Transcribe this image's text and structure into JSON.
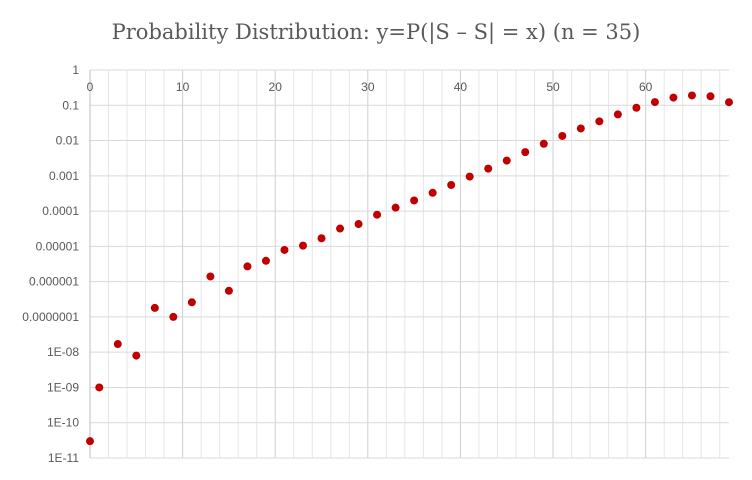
{
  "chart_data": {
    "type": "scatter",
    "title": "Probability Distribution: y=P(|S – S| = x) (n = 35)",
    "xlabel": "",
    "ylabel": "",
    "xlim": [
      0,
      69
    ],
    "ylim": [
      1e-11,
      1
    ],
    "y_scale": "log",
    "grid": true,
    "x_ticks": [
      0,
      10,
      20,
      30,
      40,
      50,
      60
    ],
    "x_tick_labels": [
      "0",
      "10",
      "20",
      "30",
      "40",
      "50",
      "60"
    ],
    "x_minor_step": 2,
    "y_ticks": [
      1,
      0.1,
      0.01,
      0.001,
      0.0001,
      1e-05,
      1e-06,
      1e-07,
      1e-08,
      1e-09,
      1e-10,
      1e-11
    ],
    "y_tick_labels": [
      "1",
      "0.1",
      "0.01",
      "0.001",
      "0.0001",
      "0.00001",
      "0.000001",
      "0.0000001",
      "1E-08",
      "1E-09",
      "1E-10",
      "1E-11"
    ],
    "marker_color": "#C00000",
    "series": [
      {
        "x": [
          0,
          1,
          3,
          5,
          7,
          9,
          11,
          13,
          15,
          17,
          19,
          21,
          23,
          25,
          27,
          29,
          31,
          33,
          35,
          37,
          39,
          41,
          43,
          45,
          47,
          49,
          51,
          53,
          55,
          57,
          59,
          61,
          63,
          65,
          67,
          69
        ],
        "y": [
          3e-11,
          1e-09,
          1.7e-08,
          8e-09,
          1.8e-07,
          1e-07,
          2.6e-07,
          1.4e-06,
          5.5e-07,
          2.7e-06,
          3.9e-06,
          7.9e-06,
          1.05e-05,
          1.7e-05,
          3.2e-05,
          4.3e-05,
          7.9e-05,
          0.000125,
          0.0002,
          0.00033,
          0.00055,
          0.00095,
          0.0016,
          0.0027,
          0.0047,
          0.0081,
          0.0135,
          0.022,
          0.035,
          0.055,
          0.085,
          0.123,
          0.165,
          0.19,
          0.18,
          0.122
        ]
      }
    ]
  }
}
